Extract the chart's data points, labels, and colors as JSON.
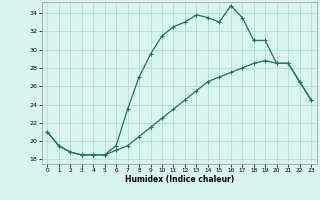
{
  "xlabel": "Humidex (Indice chaleur)",
  "bg_color": "#d6f5ef",
  "grid_color": "#aed8d0",
  "line_color": "#2a7060",
  "xlim": [
    -0.5,
    23.5
  ],
  "ylim": [
    17.5,
    35.2
  ],
  "yticks": [
    18,
    20,
    22,
    24,
    26,
    28,
    30,
    32,
    34
  ],
  "xticks": [
    0,
    1,
    2,
    3,
    4,
    5,
    6,
    7,
    8,
    9,
    10,
    11,
    12,
    13,
    14,
    15,
    16,
    17,
    18,
    19,
    20,
    21,
    22,
    23
  ],
  "line1_x": [
    0,
    1,
    2,
    3,
    4,
    5,
    6,
    7,
    8,
    9,
    10,
    11,
    12,
    13,
    14,
    15,
    16,
    17,
    18
  ],
  "line1_y": [
    21.0,
    19.5,
    18.8,
    18.5,
    18.5,
    18.5,
    19.5,
    23.5,
    27.0,
    29.5,
    31.5,
    32.5,
    33.0,
    33.8,
    33.5,
    33.0,
    34.8,
    33.5,
    31.0
  ],
  "line2_x": [
    18,
    19,
    20,
    21,
    22,
    23
  ],
  "line2_y": [
    31.0,
    31.0,
    28.5,
    28.5,
    26.5,
    24.5
  ],
  "line3_x": [
    0,
    1,
    2,
    3,
    4,
    5,
    6,
    7,
    8,
    9,
    10,
    11,
    12,
    13,
    14,
    15,
    16,
    17,
    18,
    19,
    20,
    21,
    22,
    23
  ],
  "line3_y": [
    21.0,
    19.5,
    18.8,
    18.5,
    18.5,
    18.5,
    19.0,
    19.5,
    20.5,
    21.5,
    22.5,
    23.5,
    24.5,
    25.5,
    26.5,
    27.0,
    27.5,
    28.0,
    28.5,
    28.8,
    28.5,
    28.5,
    26.5,
    24.5
  ]
}
